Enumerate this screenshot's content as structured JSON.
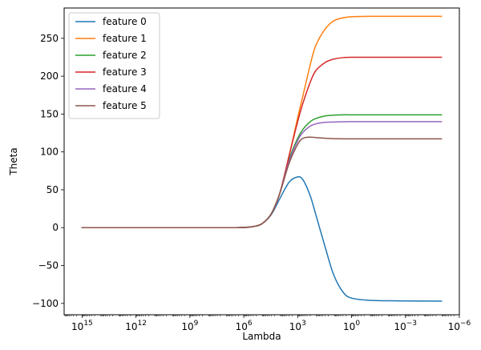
{
  "chart_data": {
    "type": "line",
    "title": "",
    "xlabel": "Lambda",
    "ylabel": "Theta",
    "x_scale": "log",
    "x_reversed": true,
    "xlim": [
      1e+16,
      1e-06
    ],
    "ylim": [
      -115,
      290
    ],
    "x_ticks": [
      {
        "value": 1000000000000000.0,
        "base": "10",
        "exp": "15"
      },
      {
        "value": 1000000000000.0,
        "base": "10",
        "exp": "12"
      },
      {
        "value": 1000000000.0,
        "base": "10",
        "exp": "9"
      },
      {
        "value": 1000000.0,
        "base": "10",
        "exp": "6"
      },
      {
        "value": 1000.0,
        "base": "10",
        "exp": "3"
      },
      {
        "value": 1,
        "base": "10",
        "exp": "0"
      },
      {
        "value": 0.001,
        "base": "10",
        "exp": "−3"
      },
      {
        "value": 1e-06,
        "base": "10",
        "exp": "−6"
      }
    ],
    "y_ticks": [
      {
        "value": -100,
        "label": "−100"
      },
      {
        "value": -50,
        "label": "−50"
      },
      {
        "value": 0,
        "label": "0"
      },
      {
        "value": 50,
        "label": "50"
      },
      {
        "value": 100,
        "label": "100"
      },
      {
        "value": 150,
        "label": "150"
      },
      {
        "value": 200,
        "label": "200"
      },
      {
        "value": 250,
        "label": "250"
      }
    ],
    "grid": false,
    "legend_position": "top-left",
    "x": [
      1000000000000000.0,
      10000000000000.0,
      100000000000.0,
      1000000000.0,
      10000000.0,
      1000000.0,
      300000.0,
      100000.0,
      30000.0,
      10000.0,
      3000.0,
      1000.0,
      500.0,
      200.0,
      100.0,
      30.0,
      10.0,
      3.0,
      1.0,
      0.1,
      0.01,
      0.001,
      0.0001,
      1e-05
    ],
    "series": [
      {
        "name": "feature 0",
        "color": "#1f77b4",
        "values": [
          0,
          0,
          0,
          0,
          0,
          0.3,
          1.5,
          5,
          17,
          38,
          60,
          67,
          63,
          42,
          18,
          -25,
          -62,
          -85,
          -93,
          -96,
          -96.5,
          -96.8,
          -96.9,
          -97
        ]
      },
      {
        "name": "feature 1",
        "color": "#ff7f0e",
        "values": [
          0,
          0,
          0,
          0,
          0,
          0.3,
          1.5,
          5,
          18,
          45,
          95,
          145,
          175,
          215,
          240,
          262,
          273,
          277,
          278.5,
          279,
          279,
          279,
          279,
          279
        ]
      },
      {
        "name": "feature 2",
        "color": "#2ca02c",
        "values": [
          0,
          0,
          0,
          0,
          0,
          0.3,
          1.5,
          5,
          18,
          45,
          90,
          118,
          130,
          140,
          144,
          147.5,
          148.5,
          149,
          149,
          149,
          149,
          149,
          149,
          149
        ]
      },
      {
        "name": "feature 3",
        "color": "#d62728",
        "values": [
          0,
          0,
          0,
          0,
          0,
          0.3,
          1.5,
          5,
          18,
          45,
          95,
          140,
          165,
          192,
          207,
          218,
          222.5,
          224.5,
          225,
          225,
          225,
          225,
          225,
          225
        ]
      },
      {
        "name": "feature 4",
        "color": "#9467bd",
        "values": [
          0,
          0,
          0,
          0,
          0,
          0.3,
          1.5,
          5,
          18,
          45,
          88,
          115,
          126,
          134,
          137,
          139,
          139.5,
          139.8,
          140,
          140,
          140,
          140,
          140,
          140
        ]
      },
      {
        "name": "feature 5",
        "color": "#8c564b",
        "values": [
          0,
          0,
          0,
          0,
          0,
          0.3,
          1.5,
          5,
          18,
          45,
          85,
          110,
          118,
          119.5,
          119,
          118,
          117.5,
          117.3,
          117.2,
          117.2,
          117.2,
          117.2,
          117.2,
          117.2
        ]
      }
    ]
  }
}
